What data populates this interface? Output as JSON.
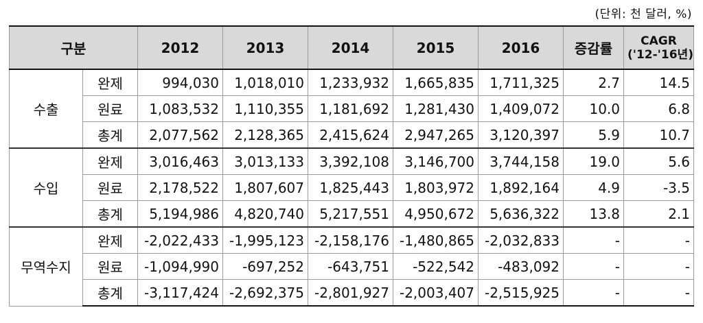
{
  "unit_note": "(단위: 천 달러, %)",
  "header": {
    "category": "구분",
    "years": [
      "2012",
      "2013",
      "2014",
      "2015",
      "2016"
    ],
    "rate": "증감률",
    "cagr_line1": "CAGR",
    "cagr_line2": "('12-'16년)"
  },
  "groups": [
    {
      "name": "수출",
      "rows": [
        {
          "type": "완제",
          "values": [
            "994,030",
            "1,018,010",
            "1,233,932",
            "1,665,835",
            "1,711,325"
          ],
          "rate": "2.7",
          "cagr": "14.5"
        },
        {
          "type": "원료",
          "values": [
            "1,083,532",
            "1,110,355",
            "1,181,692",
            "1,281,430",
            "1,409,072"
          ],
          "rate": "10.0",
          "cagr": "6.8"
        },
        {
          "type": "총계",
          "values": [
            "2,077,562",
            "2,128,365",
            "2,415,624",
            "2,947,265",
            "3,120,397"
          ],
          "rate": "5.9",
          "cagr": "10.7"
        }
      ]
    },
    {
      "name": "수입",
      "rows": [
        {
          "type": "완제",
          "values": [
            "3,016,463",
            "3,013,133",
            "3,392,108",
            "3,146,700",
            "3,744,158"
          ],
          "rate": "19.0",
          "cagr": "5.6"
        },
        {
          "type": "원료",
          "values": [
            "2,178,522",
            "1,807,607",
            "1,825,443",
            "1,803,972",
            "1,892,164"
          ],
          "rate": "4.9",
          "cagr": "-3.5"
        },
        {
          "type": "총계",
          "values": [
            "5,194,986",
            "4,820,740",
            "5,217,551",
            "4,950,672",
            "5,636,322"
          ],
          "rate": "13.8",
          "cagr": "2.1"
        }
      ]
    },
    {
      "name": "무역수지",
      "rows": [
        {
          "type": "완제",
          "values": [
            "-2,022,433",
            "-1,995,123",
            "-2,158,176",
            "-1,480,865",
            "-2,032,833"
          ],
          "rate": "-",
          "cagr": "-"
        },
        {
          "type": "원료",
          "values": [
            "-1,094,990",
            "-697,252",
            "-643,751",
            "-522,542",
            "-483,092"
          ],
          "rate": "-",
          "cagr": "-"
        },
        {
          "type": "총계",
          "values": [
            "-3,117,424",
            "-2,692,375",
            "-2,801,927",
            "-2,003,407",
            "-2,515,925"
          ],
          "rate": "-",
          "cagr": "-"
        }
      ]
    }
  ]
}
